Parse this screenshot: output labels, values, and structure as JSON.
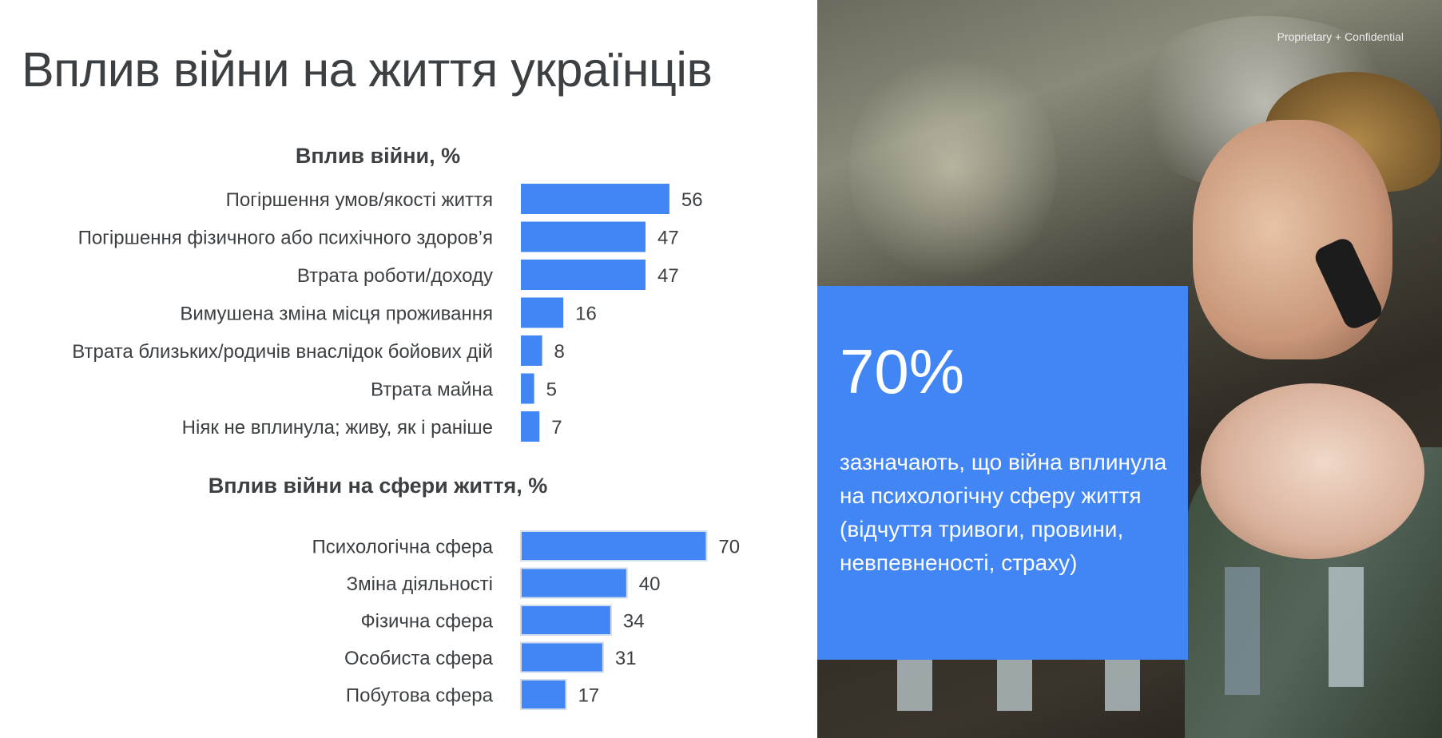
{
  "page": {
    "title": "Вплив війни на життя українців",
    "confidential": "Proprietary + Confidential"
  },
  "callout": {
    "stat": "70%",
    "text": "зазначають, що війна вплинула на психологічну сферу життя (відчуття тривоги, провини, невпевненості, страху)"
  },
  "colors": {
    "bar": "#4285f4",
    "callout_bg": "#4285f4",
    "text": "#3c4043"
  },
  "chart_data": [
    {
      "type": "bar",
      "orientation": "horizontal",
      "title": "Вплив війни, %",
      "categories": [
        "Погіршення умов/якості життя",
        "Погіршення фізичного або психічного здоров’я",
        "Втрата роботи/доходу",
        "Вимушена зміна місця проживання",
        "Втрата близьких/родичів внаслідок бойових дій",
        "Втрата майна",
        "Ніяк не вплинула; живу, як і раніше"
      ],
      "values": [
        56,
        47,
        47,
        16,
        8,
        5,
        7
      ],
      "xlim": [
        0,
        100
      ]
    },
    {
      "type": "bar",
      "orientation": "horizontal",
      "title": "Вплив війни на сфери життя, %",
      "categories": [
        "Психологічна сфера",
        "Зміна діяльності",
        "Фізична сфера",
        "Особиста сфера",
        "Побутова сфера"
      ],
      "values": [
        70,
        40,
        34,
        31,
        17
      ],
      "xlim": [
        0,
        100
      ]
    }
  ]
}
